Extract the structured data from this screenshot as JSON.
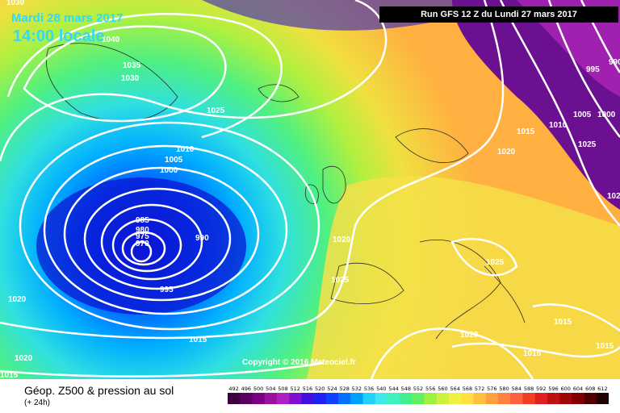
{
  "header": {
    "date": "Mardi 28 mars 2017",
    "time": "14:00 locale",
    "run": "Run GFS 12 Z du Lundi 27 mars 2017"
  },
  "footer": {
    "title": "Géop. Z500 & pression au sol",
    "subtitle": "(+ 24h)",
    "copyright": "Copyright © 2016 Meteociel.fr"
  },
  "isobar_labels": [
    "1030",
    "1040",
    "1035",
    "1030",
    "1025",
    "1010",
    "1005",
    "1000",
    "985",
    "980",
    "975",
    "970",
    "990",
    "995",
    "1020",
    "1025",
    "1020",
    "1020",
    "1015",
    "1015",
    "1020",
    "1015",
    "1010",
    "1005",
    "1000",
    "995",
    "990",
    "1020",
    "1025",
    "1025",
    "1015",
    "1020",
    "1015",
    "1015"
  ],
  "scale": {
    "labels": [
      "492",
      "496",
      "500",
      "504",
      "508",
      "512",
      "516",
      "520",
      "524",
      "528",
      "532",
      "536",
      "540",
      "544",
      "548",
      "552",
      "556",
      "560",
      "564",
      "568",
      "572",
      "576",
      "580",
      "584",
      "588",
      "592",
      "596",
      "600",
      "604",
      "608",
      "612"
    ],
    "colors": [
      "#3a0040",
      "#5a0060",
      "#7a0080",
      "#9a10a0",
      "#b020c0",
      "#8010d0",
      "#4010e0",
      "#2020f0",
      "#1040ff",
      "#0070ff",
      "#00a0ff",
      "#20d0ff",
      "#40e8e8",
      "#40f0c0",
      "#40f090",
      "#60f060",
      "#a0f040",
      "#d0f040",
      "#f0f040",
      "#ffe040",
      "#ffc040",
      "#ffa040",
      "#ff8040",
      "#ff6040",
      "#f04020",
      "#e02020",
      "#c01010",
      "#a00808",
      "#800000",
      "#500000",
      "#200000"
    ]
  },
  "colors": {
    "overlay_text": "#35d9f5",
    "isobar": "#ffffff",
    "banner_bg": "#000000"
  }
}
